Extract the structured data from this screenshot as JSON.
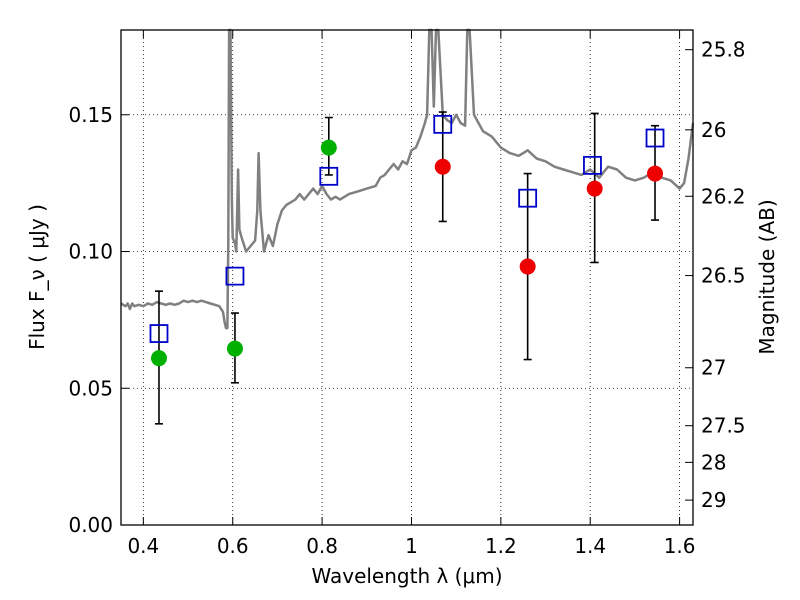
{
  "chart_data": {
    "type": "scatter",
    "xlabel": "Wavelength  λ (μm)",
    "ylabel": "Flux  F_ν  ( μJy )",
    "y2label": "Magnitude (AB)",
    "xlim": [
      0.35,
      1.63
    ],
    "ylim": [
      0.0,
      0.181
    ],
    "grid": true,
    "x_ticks": [
      0.4,
      0.6,
      0.8,
      1.0,
      1.2,
      1.4,
      1.6
    ],
    "x_tick_labels": [
      "0.4",
      "0.6",
      "0.8",
      "1",
      "1.2",
      "1.4",
      "1.6"
    ],
    "y_ticks": [
      0.0,
      0.05,
      0.1,
      0.15
    ],
    "y_tick_labels": [
      "0.00",
      "0.05",
      "0.10",
      "0.15"
    ],
    "y2_ticks": [
      {
        "label": "25.8",
        "flux": 0.1738
      },
      {
        "label": "26",
        "flux": 0.1445
      },
      {
        "label": "26.2",
        "flux": 0.1202
      },
      {
        "label": "26.5",
        "flux": 0.0912
      },
      {
        "label": "27",
        "flux": 0.0575
      },
      {
        "label": "27.5",
        "flux": 0.0363
      },
      {
        "label": "28",
        "flux": 0.0229
      },
      {
        "label": "29",
        "flux": 0.0091
      }
    ],
    "colors": {
      "model": "#808080",
      "green": "#00b000",
      "red": "#ee0000",
      "square": "#0000cc",
      "errorbar": "#000000"
    },
    "series": [
      {
        "marker": "square",
        "color": "#0000cc",
        "points": [
          {
            "x": 0.435,
            "y": 0.07
          },
          {
            "x": 0.605,
            "y": 0.091
          },
          {
            "x": 0.815,
            "y": 0.1275
          },
          {
            "x": 1.07,
            "y": 0.1465
          },
          {
            "x": 1.26,
            "y": 0.1195
          },
          {
            "x": 1.405,
            "y": 0.1315
          },
          {
            "x": 1.545,
            "y": 0.1415
          }
        ]
      },
      {
        "marker": "circle",
        "color": "#00b000",
        "points": [
          {
            "x": 0.435,
            "y": 0.061,
            "err_low": 0.037,
            "err_high": 0.0855
          },
          {
            "x": 0.605,
            "y": 0.0645,
            "err_low": 0.052,
            "err_high": 0.0775
          },
          {
            "x": 0.815,
            "y": 0.138,
            "err_low": 0.128,
            "err_high": 0.149
          }
        ]
      },
      {
        "marker": "circle",
        "color": "#ee0000",
        "points": [
          {
            "x": 1.07,
            "y": 0.131,
            "err_low": 0.111,
            "err_high": 0.151
          },
          {
            "x": 1.26,
            "y": 0.0945,
            "err_low": 0.0605,
            "err_high": 0.1285
          },
          {
            "x": 1.41,
            "y": 0.123,
            "err_low": 0.096,
            "err_high": 0.1505
          },
          {
            "x": 1.545,
            "y": 0.1285,
            "err_low": 0.1115,
            "err_high": 0.146
          }
        ]
      },
      {
        "marker": "line",
        "color": "#808080",
        "points": [
          [
            0.35,
            0.081
          ],
          [
            0.36,
            0.08
          ],
          [
            0.365,
            0.081
          ],
          [
            0.37,
            0.079
          ],
          [
            0.375,
            0.081
          ],
          [
            0.38,
            0.08
          ],
          [
            0.39,
            0.0805
          ],
          [
            0.4,
            0.08
          ],
          [
            0.41,
            0.081
          ],
          [
            0.42,
            0.0805
          ],
          [
            0.43,
            0.0815
          ],
          [
            0.44,
            0.081
          ],
          [
            0.45,
            0.0805
          ],
          [
            0.46,
            0.081
          ],
          [
            0.47,
            0.0805
          ],
          [
            0.48,
            0.081
          ],
          [
            0.49,
            0.082
          ],
          [
            0.5,
            0.0815
          ],
          [
            0.51,
            0.082
          ],
          [
            0.52,
            0.0815
          ],
          [
            0.53,
            0.082
          ],
          [
            0.54,
            0.0815
          ],
          [
            0.55,
            0.081
          ],
          [
            0.56,
            0.0805
          ],
          [
            0.57,
            0.08
          ],
          [
            0.578,
            0.078
          ],
          [
            0.582,
            0.074
          ],
          [
            0.585,
            0.072
          ],
          [
            0.588,
            0.072
          ],
          [
            0.59,
            0.104
          ],
          [
            0.592,
            0.181
          ],
          [
            0.595,
            0.181
          ],
          [
            0.598,
            0.12
          ],
          [
            0.6,
            0.105
          ],
          [
            0.605,
            0.103
          ],
          [
            0.608,
            0.1
          ],
          [
            0.612,
            0.13
          ],
          [
            0.615,
            0.108
          ],
          [
            0.62,
            0.105
          ],
          [
            0.63,
            0.1
          ],
          [
            0.64,
            0.102
          ],
          [
            0.65,
            0.104
          ],
          [
            0.655,
            0.115
          ],
          [
            0.658,
            0.136
          ],
          [
            0.662,
            0.115
          ],
          [
            0.67,
            0.1
          ],
          [
            0.68,
            0.106
          ],
          [
            0.69,
            0.102
          ],
          [
            0.7,
            0.11
          ],
          [
            0.71,
            0.115
          ],
          [
            0.72,
            0.117
          ],
          [
            0.73,
            0.118
          ],
          [
            0.74,
            0.119
          ],
          [
            0.75,
            0.121
          ],
          [
            0.76,
            0.119
          ],
          [
            0.77,
            0.121
          ],
          [
            0.78,
            0.123
          ],
          [
            0.79,
            0.121
          ],
          [
            0.8,
            0.124
          ],
          [
            0.81,
            0.121
          ],
          [
            0.82,
            0.119
          ],
          [
            0.83,
            0.12
          ],
          [
            0.84,
            0.119
          ],
          [
            0.86,
            0.121
          ],
          [
            0.88,
            0.122
          ],
          [
            0.9,
            0.123
          ],
          [
            0.92,
            0.124
          ],
          [
            0.93,
            0.127
          ],
          [
            0.94,
            0.128
          ],
          [
            0.95,
            0.13
          ],
          [
            0.96,
            0.132
          ],
          [
            0.97,
            0.13
          ],
          [
            0.98,
            0.133
          ],
          [
            0.99,
            0.132
          ],
          [
            1.0,
            0.137
          ],
          [
            1.01,
            0.138
          ],
          [
            1.02,
            0.142
          ],
          [
            1.03,
            0.147
          ],
          [
            1.035,
            0.15
          ],
          [
            1.04,
            0.181
          ],
          [
            1.045,
            0.181
          ],
          [
            1.05,
            0.153
          ],
          [
            1.055,
            0.181
          ],
          [
            1.06,
            0.181
          ],
          [
            1.07,
            0.15
          ],
          [
            1.08,
            0.148
          ],
          [
            1.09,
            0.147
          ],
          [
            1.1,
            0.15
          ],
          [
            1.11,
            0.147
          ],
          [
            1.12,
            0.146
          ],
          [
            1.125,
            0.181
          ],
          [
            1.13,
            0.181
          ],
          [
            1.14,
            0.15
          ],
          [
            1.16,
            0.144
          ],
          [
            1.18,
            0.142
          ],
          [
            1.2,
            0.138
          ],
          [
            1.22,
            0.136
          ],
          [
            1.24,
            0.135
          ],
          [
            1.26,
            0.137
          ],
          [
            1.28,
            0.134
          ],
          [
            1.3,
            0.133
          ],
          [
            1.32,
            0.131
          ],
          [
            1.34,
            0.13
          ],
          [
            1.36,
            0.129
          ],
          [
            1.38,
            0.128
          ],
          [
            1.4,
            0.13
          ],
          [
            1.42,
            0.127
          ],
          [
            1.44,
            0.131
          ],
          [
            1.46,
            0.13
          ],
          [
            1.48,
            0.127
          ],
          [
            1.5,
            0.126
          ],
          [
            1.52,
            0.127
          ],
          [
            1.54,
            0.129
          ],
          [
            1.56,
            0.127
          ],
          [
            1.58,
            0.126
          ],
          [
            1.6,
            0.123
          ],
          [
            1.61,
            0.125
          ],
          [
            1.62,
            0.134
          ],
          [
            1.63,
            0.147
          ]
        ]
      }
    ]
  }
}
